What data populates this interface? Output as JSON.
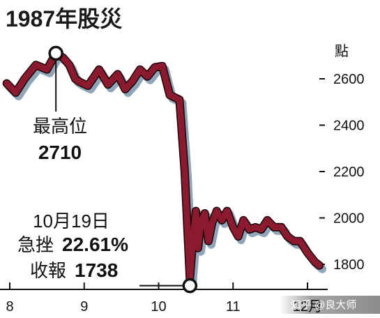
{
  "title": "1987年股災",
  "chart_data": {
    "type": "line",
    "y_unit": "點",
    "ylim": [
      1700,
      2800
    ],
    "y_ticks": [
      1800,
      2000,
      2200,
      2400,
      2600
    ],
    "x_ticks": [
      "8",
      "9",
      "10",
      "11",
      "12月"
    ],
    "x_tick_positions": [
      8,
      9,
      10,
      11,
      12
    ],
    "xlim": [
      7.95,
      12.2
    ],
    "series": [
      {
        "color": "#8b1a2e",
        "x": [
          7.96,
          8.08,
          8.2,
          8.35,
          8.5,
          8.62,
          8.72,
          8.8,
          8.88,
          8.95,
          9.05,
          9.2,
          9.32,
          9.45,
          9.55,
          9.65,
          9.75,
          9.85,
          9.95,
          10.05,
          10.15,
          10.28,
          10.35,
          10.42,
          10.46,
          10.5,
          10.53,
          10.57,
          10.62,
          10.67,
          10.72,
          10.78,
          10.85,
          10.92,
          11.0,
          11.07,
          11.14,
          11.22,
          11.3,
          11.38,
          11.46,
          11.55,
          11.65,
          11.73,
          11.82,
          11.9,
          12.0,
          12.1,
          12.16
        ],
        "values": [
          2580,
          2540,
          2600,
          2660,
          2640,
          2710,
          2690,
          2660,
          2600,
          2585,
          2570,
          2640,
          2575,
          2620,
          2555,
          2590,
          2640,
          2610,
          2650,
          2655,
          2530,
          2510,
          2200,
          1738,
          1900,
          2030,
          1870,
          1980,
          2020,
          1900,
          1980,
          2030,
          1990,
          2030,
          1960,
          1920,
          1990,
          1950,
          1960,
          1950,
          1990,
          1960,
          1960,
          1920,
          1900,
          1900,
          1850,
          1810,
          1795
        ]
      }
    ],
    "annotations": [
      {
        "label": "最高位",
        "value_text": "2710",
        "x": 8.62,
        "y": 2710
      },
      {
        "label": "10月19日",
        "line2_label": "急挫",
        "line2_value": "22.61%",
        "line3_label": "收報",
        "line3_value": "1738",
        "x": 10.42,
        "y": 1738
      }
    ]
  },
  "watermark": "知乎 @良大师"
}
